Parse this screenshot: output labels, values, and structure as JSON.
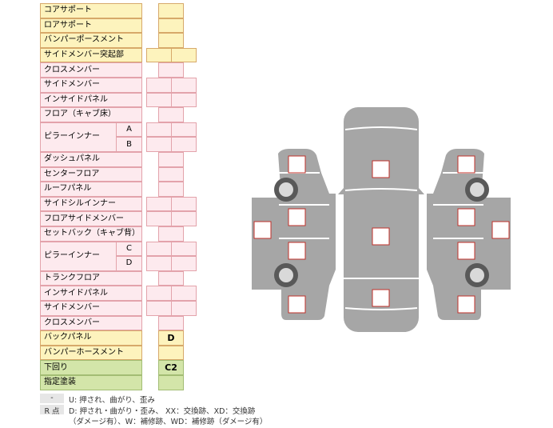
{
  "rows": [
    {
      "label": "コアサポート"
    },
    {
      "label": "ロアサポート"
    },
    {
      "label": "バンパーポースメント"
    },
    {
      "label": "サイドメンバー突起部"
    },
    {
      "label": "クロスメンバー"
    },
    {
      "label": "サイドメンバー"
    },
    {
      "label": "インサイドパネル"
    },
    {
      "label": "フロア（キャブ床）"
    },
    {
      "label": "ピラーインナー",
      "parts": [
        "A",
        "B"
      ]
    },
    {
      "label": "ダッシュパネル"
    },
    {
      "label": "センターフロア"
    },
    {
      "label": "ルーフパネル"
    },
    {
      "label": "サイドシルインナー"
    },
    {
      "label": "フロアサイドメンバー"
    },
    {
      "label": "セットバック（キャブ背）"
    },
    {
      "label": "ピラーインナー",
      "parts": [
        "C",
        "D"
      ]
    },
    {
      "label": "トランクフロア"
    },
    {
      "label": "インサイドパネル"
    },
    {
      "label": "サイドメンバー"
    },
    {
      "label": "クロスメンバー"
    },
    {
      "label": "バックパネル",
      "mark": "D"
    },
    {
      "label": "バンパーホースメント"
    },
    {
      "label": "下回り",
      "mark": "C2"
    },
    {
      "label": "指定塗装"
    }
  ],
  "legend": [
    {
      "key": "-",
      "lines": [
        "U: 押され、曲がり、歪み"
      ]
    },
    {
      "key": "R 点",
      "lines": [
        "D: 押され・曲がり・歪み、 XX：交換跡、XD：交換跡",
        "（ダメージ有）、W：補修跡、WD：補修跡（ダメージ有）"
      ]
    }
  ]
}
